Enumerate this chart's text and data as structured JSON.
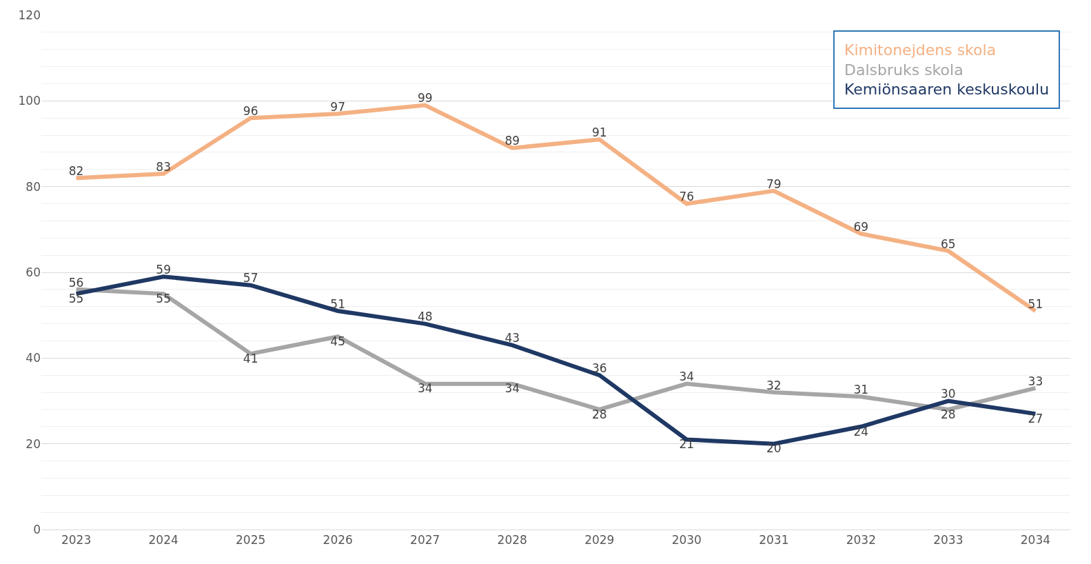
{
  "chart_data": {
    "type": "line",
    "categories": [
      "2023",
      "2024",
      "2025",
      "2026",
      "2027",
      "2028",
      "2029",
      "2030",
      "2031",
      "2032",
      "2033",
      "2034"
    ],
    "series": [
      {
        "name": "Kimitonejdens skola",
        "color": "#f4b183",
        "values": [
          82,
          83,
          96,
          97,
          99,
          89,
          91,
          76,
          79,
          69,
          65,
          51
        ]
      },
      {
        "name": "Dalsbruks skola",
        "color": "#a6a6a6",
        "values": [
          56,
          55,
          41,
          45,
          34,
          34,
          28,
          34,
          32,
          31,
          28,
          33
        ]
      },
      {
        "name": "Kemiönsaaren keskuskoulu",
        "color": "#1f3864",
        "values": [
          55,
          59,
          57,
          51,
          48,
          43,
          36,
          21,
          20,
          24,
          30,
          27
        ]
      }
    ],
    "ylim": [
      0,
      120
    ],
    "yticks": [
      0,
      20,
      40,
      60,
      80,
      100,
      120
    ],
    "grid": "y",
    "legend": "top right",
    "data_labels": true,
    "marker": "none",
    "line_style": "solid"
  }
}
